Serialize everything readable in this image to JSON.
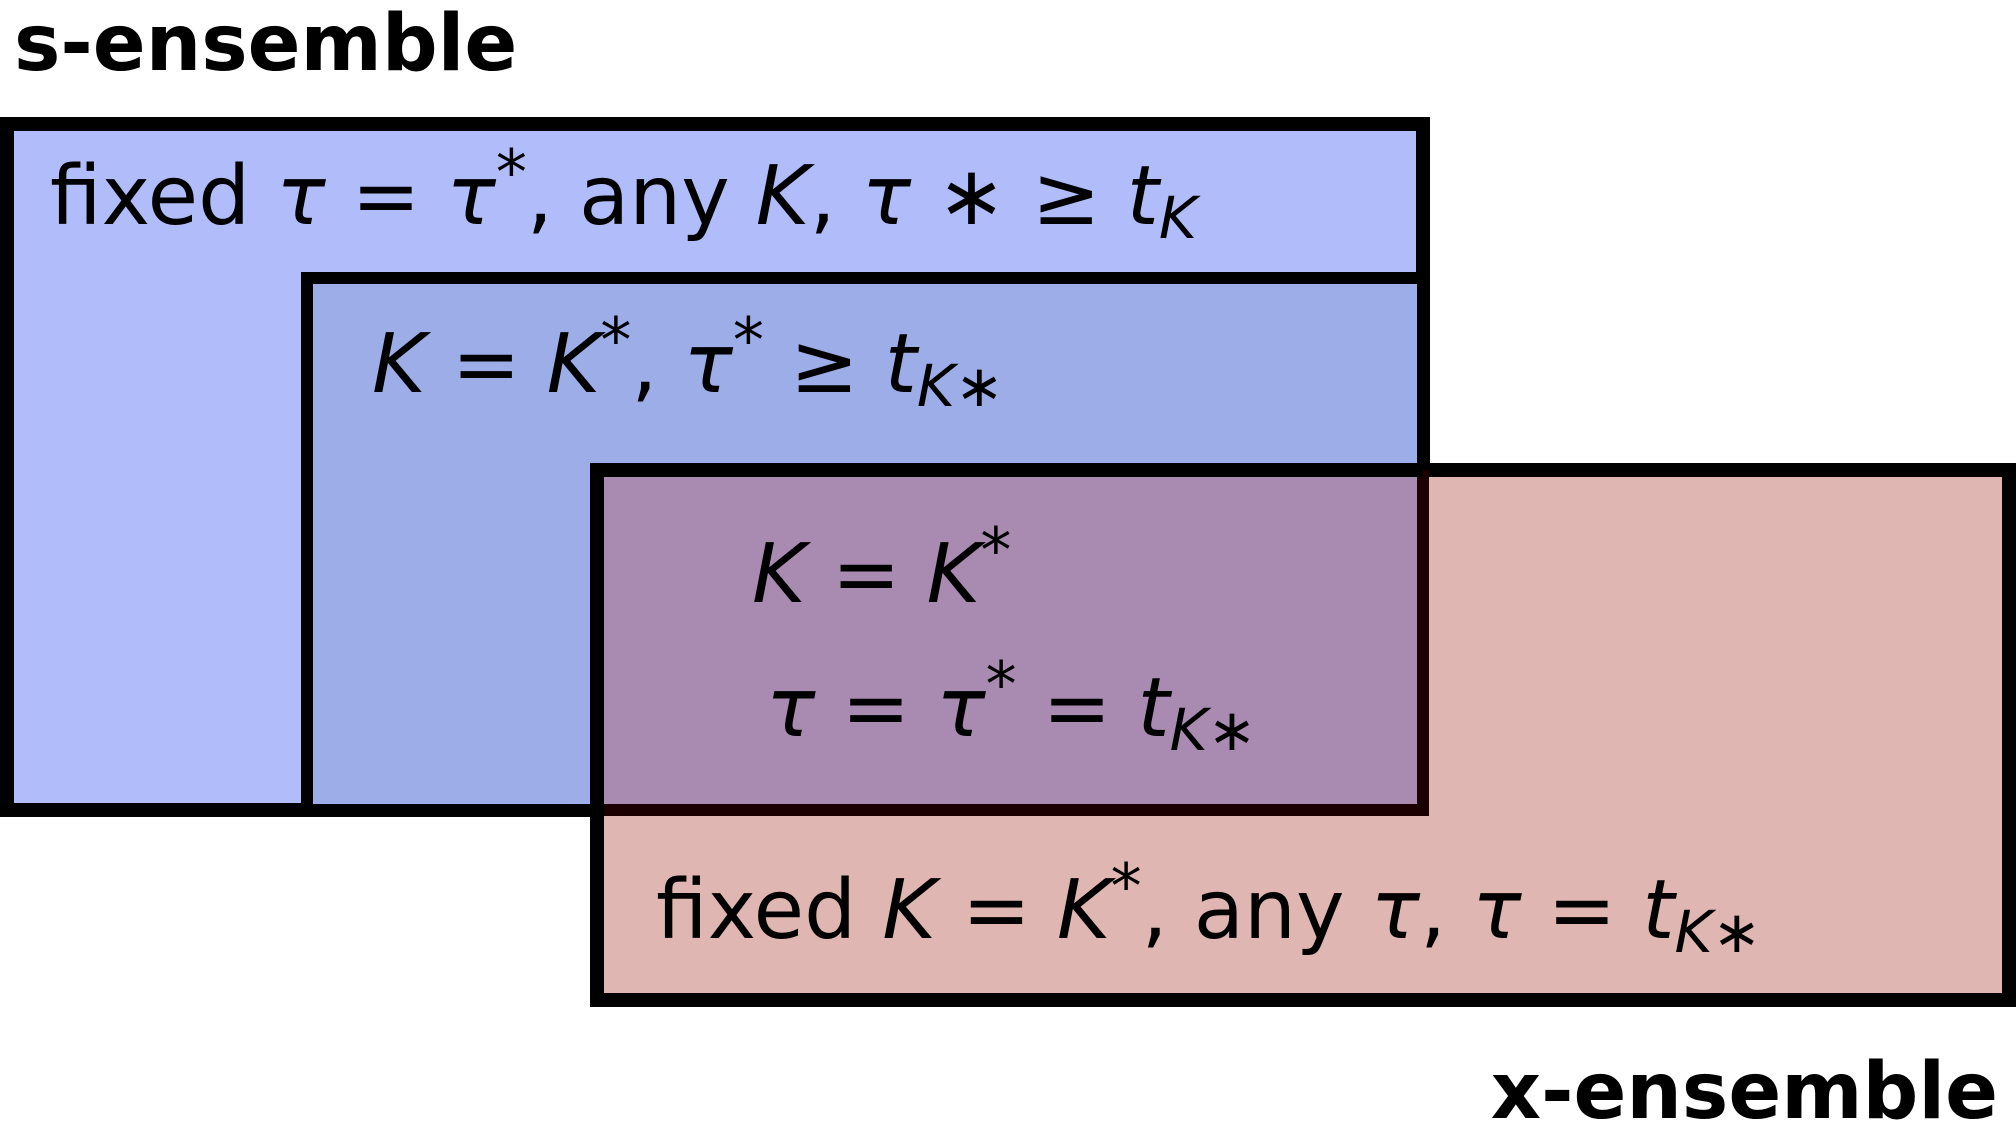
{
  "diagram": {
    "s_ensemble_title": "s-ensemble",
    "x_ensemble_title": "x-ensemble",
    "colors": {
      "s_box": "#b1bdfb",
      "inner_box": "#9cade8",
      "x_box": "#dfb6b2",
      "overlap": "#a98bb2",
      "border": "#000000"
    },
    "s_box": {
      "w1": "fixed ",
      "tau1": "τ",
      "eq1": " = ",
      "tau2": "τ",
      "star1": "*",
      "sep1": ", ",
      "w2": "any ",
      "K": "K",
      "sep2": ",  ",
      "tau3": "τ",
      "star2": " ∗ ",
      "geq": "≥ ",
      "t": "t",
      "sub": "K"
    },
    "inner_box": {
      "K1": "K",
      "eq": " = ",
      "K2": "K",
      "star1": "*",
      "sep": ", ",
      "tau": "τ",
      "star2": "*",
      "geq": " ≥ ",
      "t": "t",
      "sub": "K∗"
    },
    "overlap_box": {
      "line1": {
        "K1": "K",
        "eq": " = ",
        "K2": "K",
        "star": "*"
      },
      "line2": {
        "tau1": "τ",
        "eq1": " = ",
        "tau2": "τ",
        "star": "*",
        "eq2": " = ",
        "t": "t",
        "sub": "K∗"
      }
    },
    "x_box": {
      "w1": "fixed ",
      "K1": "K",
      "eq1": " = ",
      "K2": "K",
      "star": "*",
      "sep1": ", ",
      "w2": "any ",
      "tau1": "τ",
      "sep2": ",  ",
      "tau2": "τ",
      "eq2": " = ",
      "t": "t",
      "sub": "K∗"
    }
  }
}
